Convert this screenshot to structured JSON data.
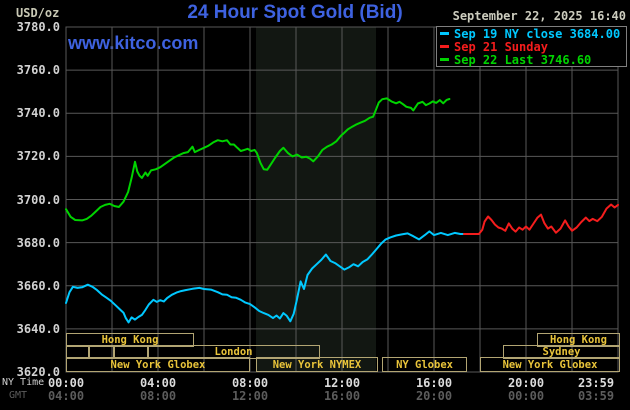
{
  "header": {
    "unit_label": "USD/oz",
    "title": "24 Hour Spot Gold (Bid)",
    "datetime": "September 22, 2025 16:40",
    "watermark": "www.kitco.com"
  },
  "legend": {
    "items": [
      {
        "id": "sep19",
        "color": "#00c8ff",
        "label": "Sep 19 NY close 3684.00"
      },
      {
        "id": "sep21",
        "color": "#f51d1d",
        "label": "Sep 21 Sunday"
      },
      {
        "id": "sep22",
        "color": "#00d400",
        "label": "Sep 22 Last 3746.60"
      }
    ]
  },
  "axis": {
    "ny_time_label": "NY Time",
    "gmt_label": "GMT",
    "ny_ticks": [
      {
        "label": "00:00",
        "t": 0
      },
      {
        "label": "04:00",
        "t": 4
      },
      {
        "label": "08:00",
        "t": 8
      },
      {
        "label": "12:00",
        "t": 12
      },
      {
        "label": "16:00",
        "t": 16
      },
      {
        "label": "20:00",
        "t": 20
      },
      {
        "label": "23:59",
        "t": 24
      }
    ],
    "gmt_ticks": [
      {
        "label": "04:00",
        "t": 0
      },
      {
        "label": "08:00",
        "t": 4
      },
      {
        "label": "12:00",
        "t": 8
      },
      {
        "label": "16:00",
        "t": 12
      },
      {
        "label": "20:00",
        "t": 16
      },
      {
        "label": "00:00",
        "t": 20
      },
      {
        "label": "03:59",
        "t": 24
      }
    ],
    "y_ticks": [
      {
        "label": "3780.0",
        "value": 3780
      },
      {
        "label": "3760.0",
        "value": 3760
      },
      {
        "label": "3740.0",
        "value": 3740
      },
      {
        "label": "3720.0",
        "value": 3720
      },
      {
        "label": "3700.0",
        "value": 3700
      },
      {
        "label": "3680.0",
        "value": 3680
      },
      {
        "label": "3660.0",
        "value": 3660
      },
      {
        "label": "3640.0",
        "value": 3640
      },
      {
        "label": "3620.0",
        "value": 3620
      }
    ]
  },
  "chart_data": {
    "type": "line",
    "title": "24 Hour Spot Gold (Bid)",
    "x_unit": "hours, NY time",
    "x_range": [
      0,
      24
    ],
    "y_range": [
      3620,
      3780
    ],
    "y_gridline_step": 20,
    "x_gridline_step_hours": 2,
    "grid": "on",
    "legend_position": "top-right",
    "nymex_band_hours": [
      8.26,
      13.48
    ],
    "series": [
      {
        "name": "Sep 19 NY close 3684.00",
        "color": "#00c8ff",
        "points": [
          [
            0,
            3652
          ],
          [
            0.15,
            3657
          ],
          [
            0.3,
            3659.5
          ],
          [
            0.5,
            3659
          ],
          [
            0.7,
            3659.3
          ],
          [
            0.95,
            3660.5
          ],
          [
            1.15,
            3659.5
          ],
          [
            1.35,
            3658
          ],
          [
            1.55,
            3656
          ],
          [
            1.75,
            3654.5
          ],
          [
            1.95,
            3653
          ],
          [
            2.15,
            3651
          ],
          [
            2.35,
            3649
          ],
          [
            2.5,
            3647.5
          ],
          [
            2.6,
            3645
          ],
          [
            2.72,
            3643
          ],
          [
            2.85,
            3645.3
          ],
          [
            3.0,
            3644.3
          ],
          [
            3.15,
            3645.5
          ],
          [
            3.3,
            3646.5
          ],
          [
            3.45,
            3648.8
          ],
          [
            3.6,
            3651.3
          ],
          [
            3.8,
            3653.5
          ],
          [
            3.95,
            3652.5
          ],
          [
            4.1,
            3653.3
          ],
          [
            4.25,
            3652.7
          ],
          [
            4.4,
            3654.3
          ],
          [
            4.6,
            3655.8
          ],
          [
            4.8,
            3656.8
          ],
          [
            5.0,
            3657.5
          ],
          [
            5.2,
            3658
          ],
          [
            5.5,
            3658.6
          ],
          [
            5.8,
            3659
          ],
          [
            6.0,
            3658.5
          ],
          [
            6.3,
            3658.2
          ],
          [
            6.6,
            3657
          ],
          [
            6.8,
            3656
          ],
          [
            7.0,
            3655.8
          ],
          [
            7.2,
            3654.7
          ],
          [
            7.4,
            3654.4
          ],
          [
            7.6,
            3653.5
          ],
          [
            7.8,
            3652.2
          ],
          [
            8.0,
            3651.5
          ],
          [
            8.2,
            3650
          ],
          [
            8.4,
            3648.3
          ],
          [
            8.6,
            3647.3
          ],
          [
            8.8,
            3646.5
          ],
          [
            9.0,
            3645
          ],
          [
            9.15,
            3646.2
          ],
          [
            9.3,
            3644.8
          ],
          [
            9.45,
            3647.3
          ],
          [
            9.6,
            3646
          ],
          [
            9.75,
            3643.5
          ],
          [
            9.9,
            3647
          ],
          [
            10.05,
            3654
          ],
          [
            10.2,
            3662
          ],
          [
            10.35,
            3658.5
          ],
          [
            10.5,
            3665
          ],
          [
            10.7,
            3668
          ],
          [
            10.9,
            3670
          ],
          [
            11.1,
            3672
          ],
          [
            11.3,
            3674.5
          ],
          [
            11.5,
            3671.5
          ],
          [
            11.7,
            3670.5
          ],
          [
            11.9,
            3669
          ],
          [
            12.1,
            3667.5
          ],
          [
            12.3,
            3668.5
          ],
          [
            12.5,
            3670
          ],
          [
            12.7,
            3669
          ],
          [
            12.9,
            3671
          ],
          [
            13.1,
            3672.2
          ],
          [
            13.3,
            3674.5
          ],
          [
            13.5,
            3677
          ],
          [
            13.7,
            3679.5
          ],
          [
            13.9,
            3681.5
          ],
          [
            14.1,
            3682.4
          ],
          [
            14.35,
            3683.3
          ],
          [
            14.6,
            3683.8
          ],
          [
            14.85,
            3684.3
          ],
          [
            15.1,
            3683
          ],
          [
            15.35,
            3681.5
          ],
          [
            15.6,
            3683.5
          ],
          [
            15.8,
            3685.2
          ],
          [
            16.0,
            3683.5
          ],
          [
            16.3,
            3684.5
          ],
          [
            16.6,
            3683.5
          ],
          [
            16.9,
            3684.5
          ],
          [
            17.15,
            3684
          ],
          [
            17.3,
            3684
          ]
        ]
      },
      {
        "name": "Sep 21 Sunday",
        "color": "#f51d1d",
        "points": [
          [
            17.3,
            3684
          ],
          [
            17.95,
            3684
          ],
          [
            18.1,
            3686
          ],
          [
            18.2,
            3689.8
          ],
          [
            18.35,
            3692.1
          ],
          [
            18.5,
            3690.5
          ],
          [
            18.65,
            3688.4
          ],
          [
            18.8,
            3687
          ],
          [
            18.95,
            3686.5
          ],
          [
            19.1,
            3685.5
          ],
          [
            19.25,
            3688.9
          ],
          [
            19.4,
            3686.5
          ],
          [
            19.55,
            3685.1
          ],
          [
            19.7,
            3687
          ],
          [
            19.85,
            3686
          ],
          [
            20.0,
            3687.5
          ],
          [
            20.15,
            3686
          ],
          [
            20.3,
            3688.4
          ],
          [
            20.5,
            3691.6
          ],
          [
            20.65,
            3693
          ],
          [
            20.8,
            3689
          ],
          [
            20.95,
            3686.5
          ],
          [
            21.1,
            3687.5
          ],
          [
            21.3,
            3684.6
          ],
          [
            21.5,
            3686.5
          ],
          [
            21.7,
            3690.3
          ],
          [
            21.85,
            3687.5
          ],
          [
            22.0,
            3685.5
          ],
          [
            22.2,
            3687
          ],
          [
            22.4,
            3689.5
          ],
          [
            22.6,
            3691.6
          ],
          [
            22.75,
            3690
          ],
          [
            22.9,
            3691
          ],
          [
            23.1,
            3690
          ],
          [
            23.3,
            3692
          ],
          [
            23.5,
            3695.8
          ],
          [
            23.7,
            3697.7
          ],
          [
            23.85,
            3696.3
          ],
          [
            24.0,
            3697.5
          ]
        ]
      },
      {
        "name": "Sep 22 Last 3746.60",
        "color": "#00d400",
        "points": [
          [
            0,
            3695.5
          ],
          [
            0.2,
            3692
          ],
          [
            0.4,
            3690.5
          ],
          [
            0.7,
            3690.3
          ],
          [
            0.9,
            3691
          ],
          [
            1.1,
            3692.5
          ],
          [
            1.3,
            3694.5
          ],
          [
            1.5,
            3696.5
          ],
          [
            1.7,
            3697.5
          ],
          [
            1.9,
            3698
          ],
          [
            2.1,
            3697
          ],
          [
            2.3,
            3696.5
          ],
          [
            2.5,
            3699
          ],
          [
            2.7,
            3703.5
          ],
          [
            2.85,
            3710
          ],
          [
            3.0,
            3717.5
          ],
          [
            3.1,
            3713
          ],
          [
            3.2,
            3711
          ],
          [
            3.3,
            3710
          ],
          [
            3.45,
            3712.5
          ],
          [
            3.55,
            3711
          ],
          [
            3.7,
            3713.5
          ],
          [
            3.9,
            3714
          ],
          [
            4.1,
            3715
          ],
          [
            4.3,
            3716.5
          ],
          [
            4.5,
            3718
          ],
          [
            4.7,
            3719.5
          ],
          [
            4.9,
            3720.5
          ],
          [
            5.1,
            3721.5
          ],
          [
            5.3,
            3722
          ],
          [
            5.5,
            3724.5
          ],
          [
            5.6,
            3722
          ],
          [
            5.8,
            3723
          ],
          [
            6.0,
            3724
          ],
          [
            6.2,
            3725
          ],
          [
            6.4,
            3726.5
          ],
          [
            6.6,
            3727.5
          ],
          [
            6.8,
            3727
          ],
          [
            7.0,
            3727.5
          ],
          [
            7.15,
            3725.5
          ],
          [
            7.3,
            3725.5
          ],
          [
            7.45,
            3724
          ],
          [
            7.6,
            3722.5
          ],
          [
            7.75,
            3723
          ],
          [
            7.9,
            3723.5
          ],
          [
            8.05,
            3722.5
          ],
          [
            8.2,
            3723
          ],
          [
            8.3,
            3721.5
          ],
          [
            8.45,
            3717
          ],
          [
            8.6,
            3714
          ],
          [
            8.75,
            3713.8
          ],
          [
            8.9,
            3716.2
          ],
          [
            9.1,
            3719.5
          ],
          [
            9.3,
            3722.5
          ],
          [
            9.45,
            3724
          ],
          [
            9.65,
            3721.5
          ],
          [
            9.85,
            3720
          ],
          [
            10.05,
            3720.8
          ],
          [
            10.25,
            3719.5
          ],
          [
            10.45,
            3719.8
          ],
          [
            10.6,
            3719
          ],
          [
            10.75,
            3717.7
          ],
          [
            10.95,
            3720
          ],
          [
            11.15,
            3723
          ],
          [
            11.35,
            3724.5
          ],
          [
            11.55,
            3725.5
          ],
          [
            11.75,
            3727
          ],
          [
            11.95,
            3729.5
          ],
          [
            12.1,
            3731
          ],
          [
            12.25,
            3732.5
          ],
          [
            12.4,
            3733.5
          ],
          [
            12.6,
            3734.7
          ],
          [
            12.8,
            3735.6
          ],
          [
            13.0,
            3736.5
          ],
          [
            13.2,
            3737.9
          ],
          [
            13.35,
            3738.4
          ],
          [
            13.45,
            3741
          ],
          [
            13.6,
            3745
          ],
          [
            13.75,
            3746.5
          ],
          [
            13.95,
            3746.9
          ],
          [
            14.15,
            3745.5
          ],
          [
            14.35,
            3744.6
          ],
          [
            14.5,
            3745.3
          ],
          [
            14.65,
            3744.2
          ],
          [
            14.8,
            3743
          ],
          [
            15.0,
            3742.5
          ],
          [
            15.1,
            3741.3
          ],
          [
            15.3,
            3744.5
          ],
          [
            15.5,
            3745.3
          ],
          [
            15.65,
            3743.8
          ],
          [
            15.8,
            3744.5
          ],
          [
            15.95,
            3745.5
          ],
          [
            16.1,
            3744.8
          ],
          [
            16.25,
            3746.1
          ],
          [
            16.4,
            3744.6
          ],
          [
            16.55,
            3746.2
          ],
          [
            16.67,
            3746.6
          ]
        ]
      }
    ],
    "sessions": [
      {
        "row": 1,
        "boxes": [
          {
            "label": "Hong Kong",
            "t1": 0,
            "t2": 5.48
          },
          {
            "label": "Hong Kong",
            "t1": 20.48,
            "t2": 24
          }
        ]
      },
      {
        "row": 2,
        "boxes": [
          {
            "label": "",
            "t1": 0,
            "t2": 0.96
          },
          {
            "label": "",
            "t1": 0.96,
            "t2": 2.04
          },
          {
            "label": "",
            "t1": 2.04,
            "t2": 3.52
          },
          {
            "label": "London",
            "t1": 3.52,
            "t2": 10.96
          },
          {
            "label": "Sydney",
            "t1": 19.0,
            "t2": 24
          }
        ]
      },
      {
        "row": 3,
        "boxes": [
          {
            "label": "New York Globex",
            "t1": 0,
            "t2": 7.91
          },
          {
            "label": "New York NYMEX",
            "t1": 8.26,
            "t2": 13.48
          },
          {
            "label": "NY Globex",
            "t1": 13.74,
            "t2": 17.35
          },
          {
            "label": "New York Globex",
            "t1": 18.0,
            "t2": 24
          }
        ]
      }
    ],
    "colors": {
      "background": "#000000",
      "grid": "#585858",
      "nymex_band": "#121712",
      "title_blue": "#3e62e0",
      "session_border": "#b2a573",
      "session_text": "#e9c43a"
    }
  }
}
